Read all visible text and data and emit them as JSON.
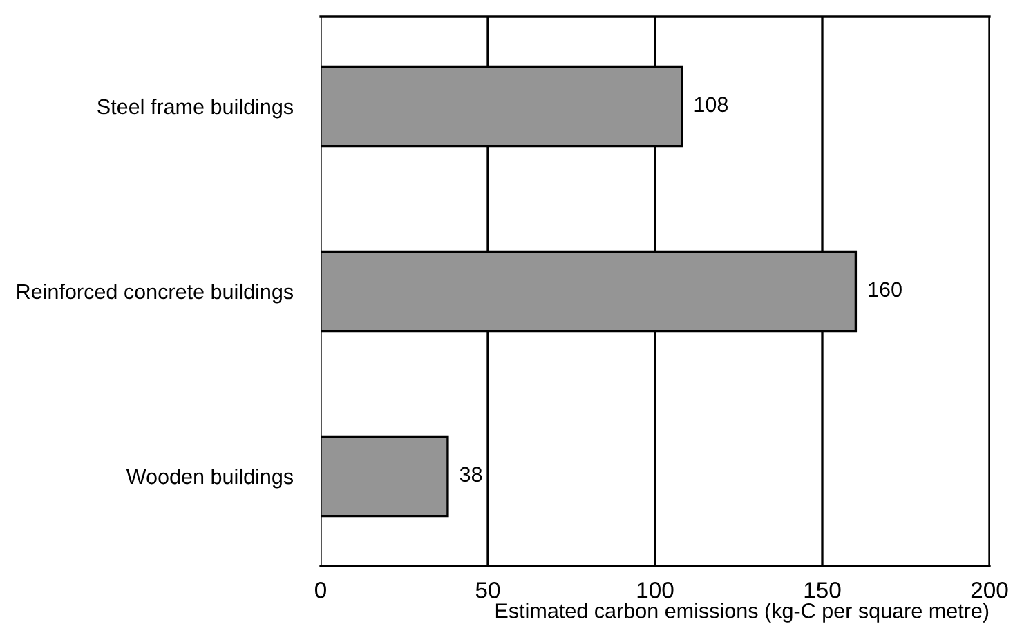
{
  "chart_data": {
    "type": "bar",
    "orientation": "horizontal",
    "categories": [
      "Steel frame buildings",
      "Reinforced concrete buildings",
      "Wooden buildings"
    ],
    "values": [
      108,
      160,
      38
    ],
    "color": "#959595",
    "xlim": [
      0,
      200
    ],
    "xticks": [
      0,
      50,
      100,
      150,
      200
    ],
    "xlabel": "Estimated carbon emissions (kg-C per square metre)",
    "grid": "x",
    "data_labels": true
  }
}
